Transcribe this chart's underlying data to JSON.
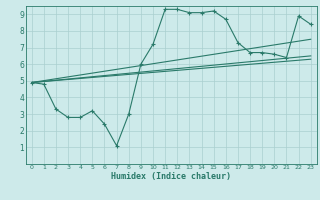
{
  "title": "",
  "xlabel": "Humidex (Indice chaleur)",
  "bg_color": "#cdeaea",
  "grid_color": "#aacfcf",
  "line_color": "#2a7a6a",
  "xlim": [
    -0.5,
    23.5
  ],
  "ylim": [
    0,
    9.5
  ],
  "xticks": [
    0,
    1,
    2,
    3,
    4,
    5,
    6,
    7,
    8,
    9,
    10,
    11,
    12,
    13,
    14,
    15,
    16,
    17,
    18,
    19,
    20,
    21,
    22,
    23
  ],
  "yticks": [
    1,
    2,
    3,
    4,
    5,
    6,
    7,
    8,
    9
  ],
  "series": [
    {
      "x": [
        0,
        1,
        2,
        3,
        4,
        5,
        6,
        7,
        8,
        9,
        10,
        11,
        12,
        13,
        14,
        15,
        16,
        17,
        18,
        19,
        20,
        21,
        22,
        23
      ],
      "y": [
        4.9,
        4.8,
        3.3,
        2.8,
        2.8,
        3.2,
        2.4,
        1.1,
        3.0,
        6.0,
        7.2,
        9.3,
        9.3,
        9.1,
        9.1,
        9.2,
        8.7,
        7.3,
        6.7,
        6.7,
        6.6,
        6.4,
        8.9,
        8.4
      ],
      "marker": true
    },
    {
      "x": [
        0,
        23
      ],
      "y": [
        4.9,
        7.5
      ],
      "marker": false
    },
    {
      "x": [
        0,
        23
      ],
      "y": [
        4.9,
        6.5
      ],
      "marker": false
    },
    {
      "x": [
        0,
        23
      ],
      "y": [
        4.9,
        6.3
      ],
      "marker": false
    }
  ]
}
